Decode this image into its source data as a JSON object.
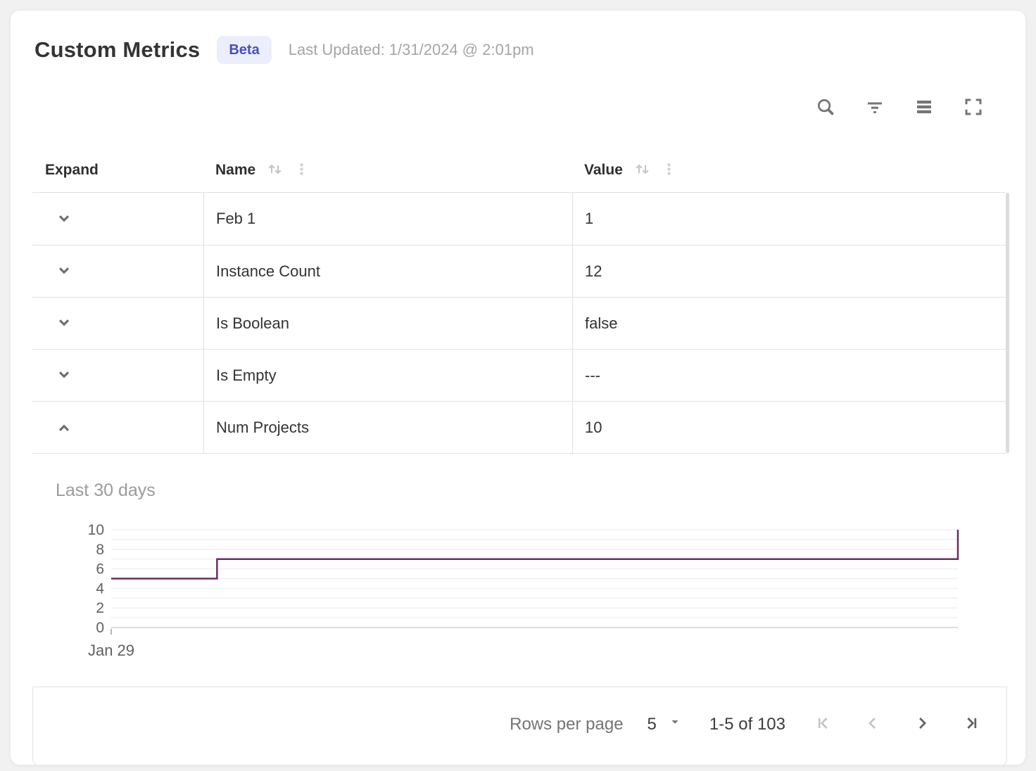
{
  "header": {
    "title": "Custom Metrics",
    "badge": "Beta",
    "last_updated": "Last Updated: 1/31/2024 @ 2:01pm"
  },
  "toolbar": {
    "icons": [
      "search",
      "filter",
      "density",
      "fullscreen"
    ]
  },
  "table": {
    "columns": {
      "expand": "Expand",
      "name": "Name",
      "value": "Value"
    },
    "rows": [
      {
        "name": "Feb 1",
        "value": "1",
        "expanded": false
      },
      {
        "name": "Instance Count",
        "value": "12",
        "expanded": false
      },
      {
        "name": "Is Boolean",
        "value": "false",
        "expanded": false
      },
      {
        "name": "Is Empty",
        "value": "---",
        "expanded": false
      },
      {
        "name": "Num Projects",
        "value": "10",
        "expanded": true
      }
    ]
  },
  "chart_data": {
    "type": "line",
    "subtype": "step-after",
    "title": "Last 30 days",
    "series": [
      {
        "name": "Num Projects",
        "points": [
          {
            "x": 0,
            "y": 5
          },
          {
            "x": 0.125,
            "y": 7
          },
          {
            "x": 1,
            "y": 10
          }
        ]
      }
    ],
    "x_tick_labels": [
      "Jan 29"
    ],
    "yticks": [
      0,
      2,
      4,
      6,
      8,
      10
    ],
    "ylim": [
      0,
      10
    ],
    "grid_step": 1,
    "grid": "on",
    "legend": "none",
    "line_color": "#6d2c5e"
  },
  "pagination": {
    "rows_per_page_label": "Rows per page",
    "rows_per_page_value": "5",
    "range_label": "1-5 of 103",
    "nav_icons": [
      "first-page",
      "previous-page",
      "next-page",
      "last-page"
    ]
  },
  "colors": {
    "badge_bg": "#eceefb",
    "badge_text": "#4a4fbc",
    "chart_line": "#6d2c5e",
    "table_border": "#e1e1e1",
    "page_bg": "#f1f1f2"
  }
}
